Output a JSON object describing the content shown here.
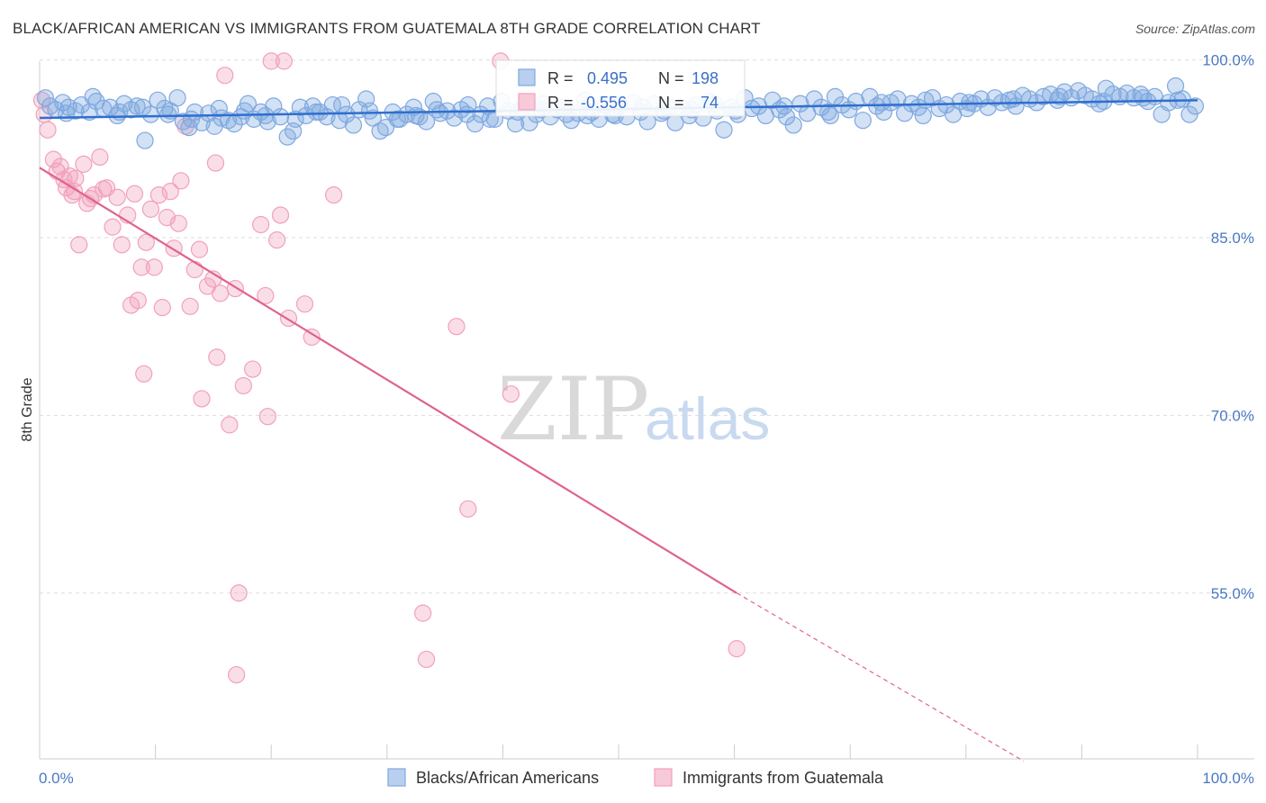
{
  "title": "BLACK/AFRICAN AMERICAN VS IMMIGRANTS FROM GUATEMALA 8TH GRADE CORRELATION CHART",
  "source": "Source: ZipAtlas.com",
  "watermark": {
    "zip": "ZIP",
    "atlas": "atlas"
  },
  "colors": {
    "blue": "#7fa8e0",
    "blue_line": "#2f6fce",
    "pink": "#f2a0ba",
    "pink_line": "#e0628e",
    "tick_text": "#4a78c2"
  },
  "chart_data": {
    "type": "scatter",
    "title": "BLACK/AFRICAN AMERICAN VS IMMIGRANTS FROM GUATEMALA 8TH GRADE CORRELATION CHART",
    "xlabel": "",
    "ylabel": "8th Grade",
    "xlim": [
      0,
      100
    ],
    "ylim": [
      41,
      100.5
    ],
    "x_tick_labels": [
      "0.0%",
      "100.0%"
    ],
    "y_ticks": [
      55,
      70,
      85,
      100
    ],
    "y_tick_labels": [
      "55.0%",
      "70.0%",
      "85.0%",
      "100.0%"
    ],
    "grid": true,
    "legend_position": "bottom",
    "stats": {
      "r_label": "R =",
      "n_label": "N =",
      "blue": {
        "r": "0.495",
        "n": "198"
      },
      "pink": {
        "r": "-0.556",
        "n": "74"
      }
    },
    "series": [
      {
        "name": "Blacks/African Americans",
        "color": "#7fa8e0",
        "trend": {
          "x": [
            0,
            100
          ],
          "y": [
            95.1,
            96.6
          ]
        },
        "points": [
          [
            0.5,
            96.8
          ],
          [
            0.9,
            96.1
          ],
          [
            1.4,
            95.8
          ],
          [
            2.0,
            96.4
          ],
          [
            2.5,
            96.0
          ],
          [
            3.1,
            95.7
          ],
          [
            3.6,
            96.2
          ],
          [
            4.3,
            95.6
          ],
          [
            4.9,
            96.5
          ],
          [
            5.5,
            95.9
          ],
          [
            6.1,
            96.0
          ],
          [
            6.7,
            95.3
          ],
          [
            7.3,
            96.3
          ],
          [
            7.9,
            95.8
          ],
          [
            8.4,
            96.1
          ],
          [
            9.1,
            93.2
          ],
          [
            9.6,
            95.4
          ],
          [
            10.2,
            96.6
          ],
          [
            10.8,
            95.9
          ],
          [
            11.3,
            95.7
          ],
          [
            11.9,
            96.8
          ],
          [
            12.4,
            94.8
          ],
          [
            12.9,
            94.3
          ],
          [
            13.4,
            95.6
          ],
          [
            14.0,
            94.7
          ],
          [
            14.6,
            95.5
          ],
          [
            15.1,
            94.4
          ],
          [
            15.7,
            95.1
          ],
          [
            16.3,
            94.9
          ],
          [
            16.8,
            94.6
          ],
          [
            17.4,
            95.2
          ],
          [
            18.0,
            96.3
          ],
          [
            18.5,
            95.0
          ],
          [
            19.1,
            95.6
          ],
          [
            19.7,
            94.8
          ],
          [
            20.2,
            96.1
          ],
          [
            20.8,
            95.2
          ],
          [
            21.4,
            93.5
          ],
          [
            21.9,
            94.0
          ],
          [
            22.5,
            96.0
          ],
          [
            23.0,
            95.3
          ],
          [
            23.6,
            96.1
          ],
          [
            24.2,
            95.6
          ],
          [
            24.8,
            95.2
          ],
          [
            25.3,
            96.2
          ],
          [
            25.9,
            94.9
          ],
          [
            26.5,
            95.4
          ],
          [
            27.1,
            94.5
          ],
          [
            27.6,
            95.8
          ],
          [
            28.2,
            96.7
          ],
          [
            28.8,
            95.1
          ],
          [
            29.4,
            94.0
          ],
          [
            29.9,
            94.3
          ],
          [
            30.5,
            95.6
          ],
          [
            31.1,
            95.0
          ],
          [
            31.7,
            95.4
          ],
          [
            32.3,
            96.0
          ],
          [
            32.8,
            95.2
          ],
          [
            33.4,
            94.8
          ],
          [
            34.0,
            96.5
          ],
          [
            34.6,
            95.5
          ],
          [
            35.2,
            95.7
          ],
          [
            35.8,
            95.1
          ],
          [
            36.4,
            95.8
          ],
          [
            37.0,
            96.2
          ],
          [
            37.6,
            94.6
          ],
          [
            38.1,
            95.4
          ],
          [
            38.7,
            96.1
          ],
          [
            39.3,
            95.0
          ],
          [
            39.9,
            96.5
          ],
          [
            40.5,
            95.7
          ],
          [
            41.1,
            94.6
          ],
          [
            41.7,
            95.9
          ],
          [
            42.3,
            94.7
          ],
          [
            42.9,
            95.4
          ],
          [
            43.5,
            96.3
          ],
          [
            44.1,
            95.2
          ],
          [
            44.7,
            95.8
          ],
          [
            45.3,
            96.0
          ],
          [
            45.9,
            94.9
          ],
          [
            46.5,
            95.5
          ],
          [
            47.1,
            96.6
          ],
          [
            47.7,
            95.6
          ],
          [
            48.3,
            95.0
          ],
          [
            48.9,
            96.2
          ],
          [
            49.5,
            95.4
          ],
          [
            50.1,
            96.1
          ],
          [
            50.7,
            95.2
          ],
          [
            51.3,
            96.4
          ],
          [
            51.9,
            95.6
          ],
          [
            52.5,
            94.8
          ],
          [
            53.1,
            96.3
          ],
          [
            53.7,
            95.5
          ],
          [
            54.3,
            96.0
          ],
          [
            54.9,
            94.7
          ],
          [
            55.5,
            95.9
          ],
          [
            56.1,
            95.3
          ],
          [
            56.7,
            96.2
          ],
          [
            57.3,
            95.1
          ],
          [
            57.9,
            96.5
          ],
          [
            58.5,
            95.7
          ],
          [
            59.1,
            94.1
          ],
          [
            59.7,
            96.0
          ],
          [
            60.3,
            95.4
          ],
          [
            60.9,
            96.8
          ],
          [
            61.5,
            95.9
          ],
          [
            62.1,
            96.1
          ],
          [
            62.7,
            95.3
          ],
          [
            63.3,
            96.6
          ],
          [
            63.9,
            95.8
          ],
          [
            64.5,
            95.2
          ],
          [
            65.1,
            94.5
          ],
          [
            65.7,
            96.3
          ],
          [
            66.3,
            95.5
          ],
          [
            66.9,
            96.7
          ],
          [
            67.5,
            96.0
          ],
          [
            68.1,
            95.6
          ],
          [
            68.7,
            96.9
          ],
          [
            69.3,
            96.2
          ],
          [
            69.9,
            95.8
          ],
          [
            70.5,
            96.5
          ],
          [
            71.1,
            94.9
          ],
          [
            71.7,
            96.9
          ],
          [
            72.3,
            96.1
          ],
          [
            72.9,
            95.6
          ],
          [
            73.5,
            96.4
          ],
          [
            74.1,
            96.7
          ],
          [
            74.7,
            95.5
          ],
          [
            75.3,
            96.3
          ],
          [
            75.9,
            96.0
          ],
          [
            76.5,
            96.6
          ],
          [
            77.1,
            96.8
          ],
          [
            77.7,
            95.9
          ],
          [
            78.3,
            96.2
          ],
          [
            78.9,
            95.4
          ],
          [
            79.5,
            96.5
          ],
          [
            80.1,
            95.9
          ],
          [
            80.7,
            96.3
          ],
          [
            81.3,
            96.7
          ],
          [
            81.9,
            96.0
          ],
          [
            82.5,
            96.8
          ],
          [
            83.1,
            96.4
          ],
          [
            83.7,
            96.6
          ],
          [
            84.3,
            96.1
          ],
          [
            84.9,
            97.0
          ],
          [
            85.5,
            96.7
          ],
          [
            86.1,
            96.4
          ],
          [
            86.7,
            96.9
          ],
          [
            87.3,
            97.1
          ],
          [
            87.9,
            96.6
          ],
          [
            88.5,
            97.3
          ],
          [
            89.1,
            96.8
          ],
          [
            89.7,
            97.4
          ],
          [
            90.3,
            97.0
          ],
          [
            90.9,
            96.7
          ],
          [
            91.5,
            96.3
          ],
          [
            92.1,
            97.6
          ],
          [
            92.7,
            97.1
          ],
          [
            93.3,
            96.9
          ],
          [
            93.9,
            97.2
          ],
          [
            94.5,
            96.8
          ],
          [
            95.1,
            97.1
          ],
          [
            95.7,
            96.5
          ],
          [
            96.3,
            96.9
          ],
          [
            96.9,
            95.4
          ],
          [
            97.5,
            96.4
          ],
          [
            98.1,
            97.8
          ],
          [
            98.7,
            96.7
          ],
          [
            99.3,
            95.4
          ],
          [
            99.8,
            96.1
          ],
          [
            4.6,
            96.9
          ],
          [
            8.9,
            96.0
          ],
          [
            13.1,
            95.0
          ],
          [
            17.7,
            95.7
          ],
          [
            22.1,
            95.0
          ],
          [
            26.1,
            96.2
          ],
          [
            30.9,
            95.0
          ],
          [
            34.3,
            95.8
          ],
          [
            38.9,
            95.0
          ],
          [
            43.3,
            95.8
          ],
          [
            47.3,
            95.3
          ],
          [
            52.1,
            96.0
          ],
          [
            56.3,
            95.8
          ],
          [
            60.1,
            95.7
          ],
          [
            64.3,
            96.1
          ],
          [
            68.3,
            95.3
          ],
          [
            72.7,
            96.4
          ],
          [
            76.3,
            95.3
          ],
          [
            80.3,
            96.4
          ],
          [
            84.1,
            96.7
          ],
          [
            88.1,
            96.9
          ],
          [
            91.9,
            96.5
          ],
          [
            95.3,
            96.8
          ],
          [
            98.3,
            96.6
          ],
          [
            2.3,
            95.5
          ],
          [
            6.9,
            95.6
          ],
          [
            11.1,
            95.4
          ],
          [
            15.5,
            95.9
          ],
          [
            19.5,
            95.3
          ],
          [
            23.9,
            95.6
          ],
          [
            28.5,
            95.7
          ],
          [
            32.5,
            95.3
          ],
          [
            36.9,
            95.4
          ],
          [
            41.3,
            95.6
          ],
          [
            45.5,
            95.4
          ],
          [
            49.7,
            95.3
          ],
          [
            53.9,
            95.7
          ],
          [
            58.3,
            96.3
          ]
        ]
      },
      {
        "name": "Immigrants from Guatemala",
        "color": "#f2a0ba",
        "trend": {
          "x": [
            0,
            60.2
          ],
          "y": [
            90.9,
            55.0
          ],
          "dashed_x": [
            60.2,
            85
          ],
          "dashed_y": [
            55.0,
            40.8
          ]
        },
        "points": [
          [
            0.2,
            96.6
          ],
          [
            0.4,
            95.4
          ],
          [
            0.7,
            94.1
          ],
          [
            1.2,
            91.6
          ],
          [
            1.5,
            90.6
          ],
          [
            1.8,
            91.0
          ],
          [
            2.1,
            89.9
          ],
          [
            2.3,
            89.2
          ],
          [
            2.6,
            90.2
          ],
          [
            2.8,
            88.6
          ],
          [
            3.1,
            90.0
          ],
          [
            3.4,
            84.4
          ],
          [
            3.8,
            91.2
          ],
          [
            4.1,
            87.9
          ],
          [
            4.4,
            88.3
          ],
          [
            4.7,
            88.6
          ],
          [
            5.2,
            91.8
          ],
          [
            5.5,
            89.1
          ],
          [
            5.8,
            89.2
          ],
          [
            6.3,
            85.9
          ],
          [
            6.7,
            88.4
          ],
          [
            7.1,
            84.4
          ],
          [
            7.6,
            86.9
          ],
          [
            7.9,
            79.3
          ],
          [
            8.2,
            88.7
          ],
          [
            8.5,
            79.7
          ],
          [
            8.8,
            82.5
          ],
          [
            9.2,
            84.6
          ],
          [
            9.6,
            87.4
          ],
          [
            9.9,
            82.5
          ],
          [
            10.3,
            88.6
          ],
          [
            10.6,
            79.1
          ],
          [
            11.0,
            86.7
          ],
          [
            11.3,
            88.9
          ],
          [
            11.6,
            84.1
          ],
          [
            12.0,
            86.2
          ],
          [
            12.2,
            89.8
          ],
          [
            12.6,
            94.4
          ],
          [
            13.0,
            79.2
          ],
          [
            13.4,
            82.3
          ],
          [
            13.8,
            84.0
          ],
          [
            14.0,
            71.4
          ],
          [
            14.5,
            80.9
          ],
          [
            15.0,
            81.5
          ],
          [
            15.3,
            74.9
          ],
          [
            15.6,
            80.3
          ],
          [
            16.0,
            98.7
          ],
          [
            16.4,
            69.2
          ],
          [
            16.9,
            80.7
          ],
          [
            17.2,
            55.0
          ],
          [
            17.6,
            72.5
          ],
          [
            18.4,
            73.9
          ],
          [
            19.1,
            86.1
          ],
          [
            19.5,
            80.1
          ],
          [
            19.7,
            69.9
          ],
          [
            20.0,
            99.9
          ],
          [
            20.5,
            84.8
          ],
          [
            20.8,
            86.9
          ],
          [
            21.1,
            99.9
          ],
          [
            21.5,
            78.2
          ],
          [
            22.9,
            79.4
          ],
          [
            23.5,
            76.6
          ],
          [
            25.4,
            88.6
          ],
          [
            33.1,
            53.3
          ],
          [
            33.4,
            49.4
          ],
          [
            36.0,
            77.5
          ],
          [
            37.0,
            62.1
          ],
          [
            39.8,
            99.9
          ],
          [
            40.7,
            71.8
          ],
          [
            60.2,
            50.3
          ],
          [
            17.0,
            48.1
          ],
          [
            15.2,
            91.3
          ],
          [
            9.0,
            73.5
          ],
          [
            3.0,
            88.9
          ]
        ]
      }
    ]
  },
  "legend": {
    "blue_label": "Blacks/African Americans",
    "pink_label": "Immigrants from Guatemala"
  }
}
